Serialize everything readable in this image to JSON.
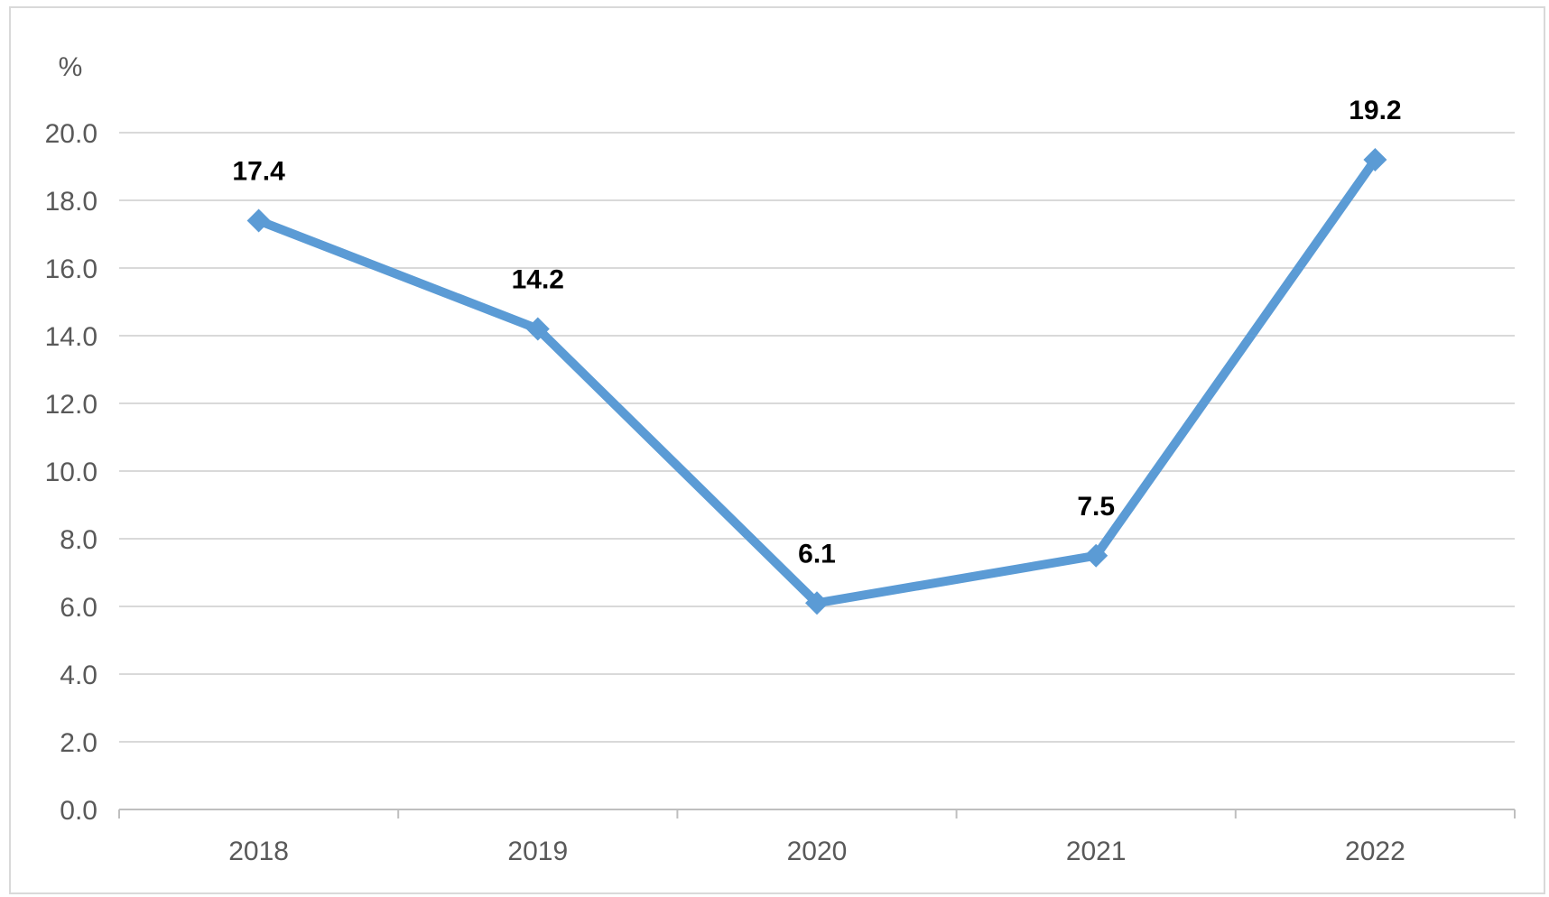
{
  "chart_data": {
    "type": "line",
    "title": "",
    "xlabel": "",
    "ylabel": "%",
    "categories": [
      "2018",
      "2019",
      "2020",
      "2021",
      "2022"
    ],
    "series": [
      {
        "values": [
          17.4,
          14.2,
          6.1,
          7.5,
          19.2
        ],
        "data_labels": [
          "17.4",
          "14.2",
          "6.1",
          "7.5",
          "19.2"
        ],
        "color": "#5B9BD5",
        "marker": "diamond"
      }
    ],
    "ylim": [
      0,
      20
    ],
    "y_ticks": [
      "0.0",
      "2.0",
      "4.0",
      "6.0",
      "8.0",
      "10.0",
      "12.0",
      "14.0",
      "16.0",
      "18.0",
      "20.0"
    ],
    "grid": true,
    "legend": "none",
    "colors": {
      "gridline": "#D9D9D9",
      "axis": "#BFBFBF",
      "tick_text": "#595959",
      "frame": "#D9D9D9"
    }
  }
}
